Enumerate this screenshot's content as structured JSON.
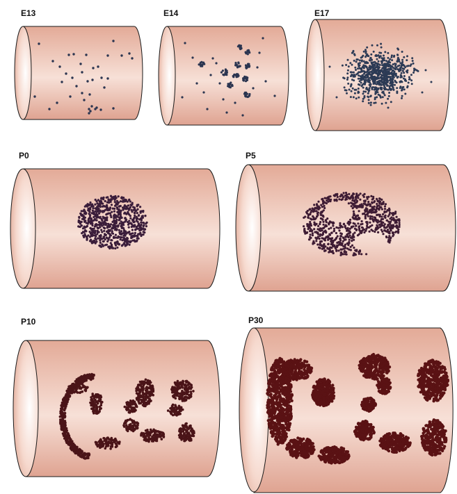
{
  "panels": [
    {
      "id": "e13",
      "label": "E13",
      "pattern": "sparse-scatter"
    },
    {
      "id": "e14",
      "label": "E14",
      "pattern": "small-clusters"
    },
    {
      "id": "e17",
      "label": "E17",
      "pattern": "dense-oval"
    },
    {
      "id": "p0",
      "label": "P0",
      "pattern": "compact-oval"
    },
    {
      "id": "p5",
      "label": "P5",
      "pattern": "oval-with-gaps"
    },
    {
      "id": "p10",
      "label": "P10",
      "pattern": "fragmented-islands"
    },
    {
      "id": "p30",
      "label": "P30",
      "pattern": "large-islands"
    }
  ],
  "colors": {
    "cylinder_body": "#e9b7a6",
    "cylinder_highlight": "#fbeee8",
    "cylinder_shadow": "#d19a87",
    "cylinder_outline": "#1a1a1a",
    "cell_e13": "#2b3550",
    "cell_e14": "#2b3550",
    "cell_e17": "#2c3a55",
    "cell_p0": "#3a1d3a",
    "cell_p5": "#3e1c34",
    "cell_p10": "#4a1418",
    "cell_p30": "#5a1214"
  }
}
